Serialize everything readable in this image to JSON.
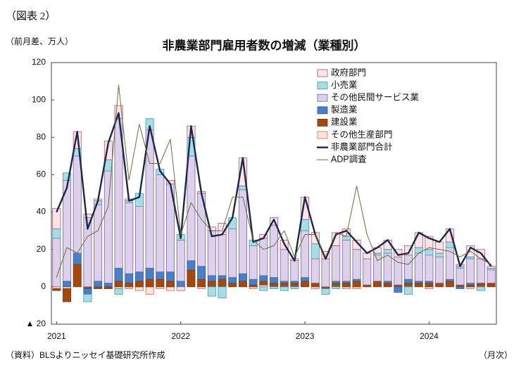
{
  "chart_data": {
    "type": "bar",
    "stacked": true,
    "figure_label": "（図表 2）",
    "unit_label": "（前月差、万人）",
    "title": "非農業部門雇用者数の増減（業種別）",
    "source": "（資料）BLSよりニッセイ基礎研究所作成",
    "x_label": "（月次）",
    "categories": [
      "2021",
      null,
      null,
      null,
      null,
      null,
      null,
      null,
      null,
      null,
      null,
      null,
      "2022",
      null,
      null,
      null,
      null,
      null,
      null,
      null,
      null,
      null,
      null,
      null,
      "2023",
      null,
      null,
      null,
      null,
      null,
      null,
      null,
      null,
      null,
      null,
      null,
      "2024",
      null,
      null,
      null,
      null,
      null,
      null
    ],
    "ylim": [
      -20,
      120
    ],
    "yticks": [
      {
        "value": -20,
        "label": "▲ 20"
      },
      0,
      20,
      40,
      60,
      80,
      100,
      120
    ],
    "grid": false,
    "legend": "upper right",
    "series": [
      {
        "name": "政府部門",
        "color": "#fbe4ea",
        "stroke": "#b5566e",
        "values": [
          11,
          0,
          9,
          2,
          1,
          10,
          7,
          1,
          0,
          0,
          0,
          2,
          -2,
          6,
          1,
          2,
          6,
          0,
          15,
          0,
          2,
          4,
          5,
          1,
          12,
          6,
          4,
          7,
          4,
          5,
          3,
          3,
          5,
          4,
          5,
          8,
          7,
          6,
          7,
          1,
          6,
          5,
          1
        ]
      },
      {
        "name": "小売業",
        "color": "#a9dce6",
        "stroke": "#3f9bb0",
        "values": [
          5,
          4,
          4,
          -4,
          2,
          6,
          -3,
          1,
          7,
          6,
          3,
          0,
          3,
          10,
          0,
          -5,
          -6,
          6,
          2,
          3,
          -2,
          -1,
          -2,
          -1,
          6,
          8,
          -3,
          -1,
          2,
          0,
          0,
          1,
          2,
          0,
          -4,
          3,
          3,
          2,
          3,
          1,
          1,
          -2,
          1
        ]
      },
      {
        "name": "その他民間サービス業",
        "color": "#dcd0ea",
        "stroke": "#7a62a0",
        "values": [
          26,
          54,
          52,
          37,
          41,
          60,
          80,
          38,
          35,
          74,
          52,
          47,
          22,
          56,
          39,
          24,
          22,
          26,
          45,
          18,
          20,
          28,
          17,
          11,
          25,
          13,
          15,
          19,
          22,
          16,
          14,
          14,
          15,
          15,
          13,
          15,
          14,
          14,
          17,
          9,
          13,
          13,
          7
        ]
      },
      {
        "name": "製造業",
        "color": "#4a7fc6",
        "stroke": "#2d5a96",
        "values": [
          0,
          3,
          6,
          -3,
          3,
          2,
          7,
          5,
          5,
          6,
          4,
          5,
          3,
          5,
          7,
          3,
          2,
          3,
          4,
          3,
          3,
          3,
          1,
          1,
          2,
          0,
          0,
          1,
          1,
          1,
          0,
          0,
          1,
          -3,
          2,
          1,
          1,
          0,
          1,
          -1,
          1,
          0,
          0
        ]
      },
      {
        "name": "建設業",
        "color": "#a5480f",
        "stroke": "#7a340a",
        "values": [
          -1,
          -7,
          12,
          -1,
          -1,
          -1,
          3,
          2,
          3,
          4,
          4,
          3,
          0,
          9,
          4,
          3,
          4,
          2,
          3,
          1,
          2,
          2,
          2,
          2,
          3,
          2,
          -1,
          2,
          2,
          3,
          1,
          3,
          2,
          1,
          2,
          2,
          2,
          2,
          3,
          1,
          1,
          2,
          2
        ]
      },
      {
        "name": "その他生産部門",
        "color": "#fde4d8",
        "stroke": "#cf6c45",
        "values": [
          -1,
          -1,
          0,
          0,
          0,
          0,
          -1,
          -1,
          -2,
          -4,
          -1,
          -2,
          0,
          0,
          -1,
          0,
          0,
          0,
          0,
          -1,
          1,
          0,
          0,
          0,
          0,
          -1,
          0,
          0,
          -1,
          -1,
          0,
          0,
          0,
          0,
          0,
          0,
          -1,
          0,
          0,
          0,
          -1,
          0,
          0
        ]
      },
      {
        "name": "非農業部門合計",
        "type": "line",
        "color": "#1c2848",
        "width": 2.4,
        "values": [
          40,
          53,
          83,
          31,
          46,
          77,
          93,
          46,
          48,
          86,
          62,
          55,
          26,
          86,
          50,
          27,
          28,
          37,
          69,
          24,
          26,
          36,
          23,
          14,
          48,
          28,
          15,
          28,
          30,
          24,
          18,
          21,
          25,
          17,
          18,
          29,
          26,
          24,
          31,
          11,
          21,
          18,
          11
        ]
      },
      {
        "name": "ADP調査",
        "type": "line",
        "color": "#6e6c3a",
        "width": 1,
        "values": [
          5,
          21,
          18,
          27,
          30,
          43,
          108,
          57,
          87,
          66,
          66,
          79,
          28,
          45,
          36,
          30,
          30,
          48,
          48,
          25,
          20,
          22,
          30,
          16,
          28,
          28,
          16,
          29,
          27,
          54,
          28,
          14,
          17,
          13,
          12,
          18,
          21,
          20,
          19,
          16,
          19,
          15,
          12
        ]
      }
    ]
  }
}
